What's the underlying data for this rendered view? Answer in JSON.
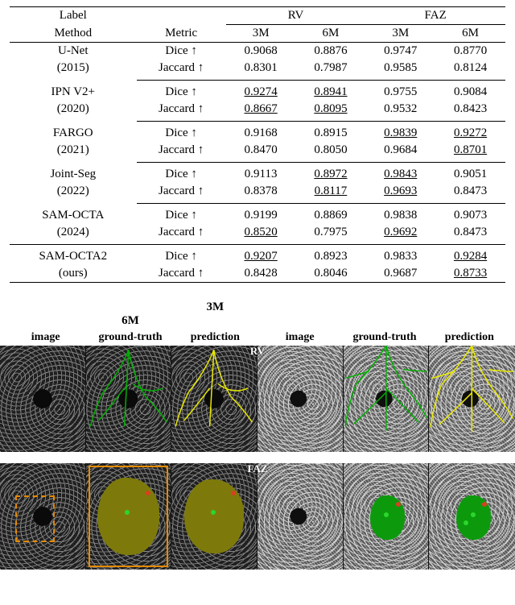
{
  "table": {
    "top_headers": {
      "label": "Label",
      "rv": "RV",
      "faz": "FAZ"
    },
    "sub_headers": {
      "method": "Method",
      "metric": "Metric",
      "c3m": "3M",
      "c6m": "6M"
    },
    "metric_dice": "Dice ↑",
    "metric_jaccard": "Jaccard ↑",
    "rows": [
      {
        "name": "U-Net",
        "year": "(2015)",
        "dice": {
          "rv3": "0.9068",
          "rv6": "0.8876",
          "faz3": "0.9747",
          "faz6": "0.8770"
        },
        "jaccard": {
          "rv3": "0.8301",
          "rv6": "0.7987",
          "faz3": "0.9585",
          "faz6": "0.8124"
        },
        "u_dice": {},
        "u_jac": {}
      },
      {
        "name": "IPN V2+",
        "year": "(2020)",
        "dice": {
          "rv3": "0.9274",
          "rv6": "0.8941",
          "faz3": "0.9755",
          "faz6": "0.9084"
        },
        "jaccard": {
          "rv3": "0.8667",
          "rv6": "0.8095",
          "faz3": "0.9532",
          "faz6": "0.8423"
        },
        "u_dice": {
          "rv3": true,
          "rv6": true
        },
        "u_jac": {
          "rv3": true,
          "rv6": true
        }
      },
      {
        "name": "FARGO",
        "year": "(2021)",
        "dice": {
          "rv3": "0.9168",
          "rv6": "0.8915",
          "faz3": "0.9839",
          "faz6": "0.9272"
        },
        "jaccard": {
          "rv3": "0.8470",
          "rv6": "0.8050",
          "faz3": "0.9684",
          "faz6": "0.8701"
        },
        "u_dice": {
          "faz3": true,
          "faz6": true
        },
        "u_jac": {
          "faz6": true
        }
      },
      {
        "name": "Joint-Seg",
        "year": "(2022)",
        "dice": {
          "rv3": "0.9113",
          "rv6": "0.8972",
          "faz3": "0.9843",
          "faz6": "0.9051"
        },
        "jaccard": {
          "rv3": "0.8378",
          "rv6": "0.8117",
          "faz3": "0.9693",
          "faz6": "0.8473"
        },
        "u_dice": {
          "rv6": true,
          "faz3": true
        },
        "u_jac": {
          "rv6": true,
          "faz3": true
        }
      },
      {
        "name": "SAM-OCTA",
        "year": "(2024)",
        "dice": {
          "rv3": "0.9199",
          "rv6": "0.8869",
          "faz3": "0.9838",
          "faz6": "0.9073"
        },
        "jaccard": {
          "rv3": "0.8520",
          "rv6": "0.7975",
          "faz3": "0.9692",
          "faz6": "0.8473"
        },
        "u_dice": {},
        "u_jac": {
          "rv3": true,
          "faz3": true
        }
      },
      {
        "name": "SAM-OCTA2",
        "year": "(ours)",
        "dice": {
          "rv3": "0.9207",
          "rv6": "0.8923",
          "faz3": "0.9833",
          "faz6": "0.9284"
        },
        "jaccard": {
          "rv3": "0.8428",
          "rv6": "0.8046",
          "faz3": "0.9687",
          "faz6": "0.8733"
        },
        "u_dice": {
          "rv3": true,
          "faz6": true
        },
        "u_jac": {
          "faz6": true
        }
      }
    ]
  },
  "figure": {
    "group_3m": "3M",
    "group_6m": "6M",
    "cols": {
      "image": "image",
      "gt": "ground-truth",
      "pred": "prediction"
    },
    "row_rv": "RV",
    "row_faz": "FAZ",
    "colors": {
      "vessel_green": "#00b000",
      "vessel_yellow": "#e8e800",
      "faz_olive": "#7d7a0b",
      "faz_green": "#0c9a0c",
      "orange": "#e68a00",
      "bg": "#ffffff"
    }
  }
}
